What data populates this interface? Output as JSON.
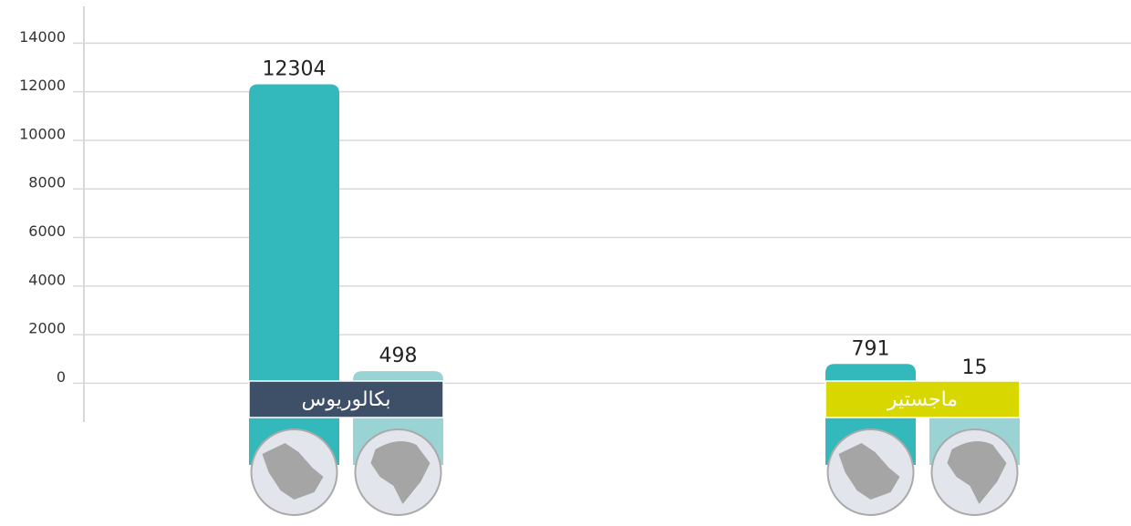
{
  "chart_data": {
    "type": "bar",
    "categories": [
      "بكالوريوس",
      "ماجستير"
    ],
    "category_colors": [
      "#3e5068",
      "#d8d800"
    ],
    "series": [
      {
        "color": "#33b8bb",
        "values": [
          12304,
          791
        ]
      },
      {
        "color": "#99d3d3",
        "values": [
          498,
          15
        ]
      }
    ],
    "ylim": [
      -1600,
      15500
    ],
    "yticks": [
      0,
      2000,
      4000,
      6000,
      8000,
      10000,
      12000,
      14000
    ],
    "grid": true
  }
}
